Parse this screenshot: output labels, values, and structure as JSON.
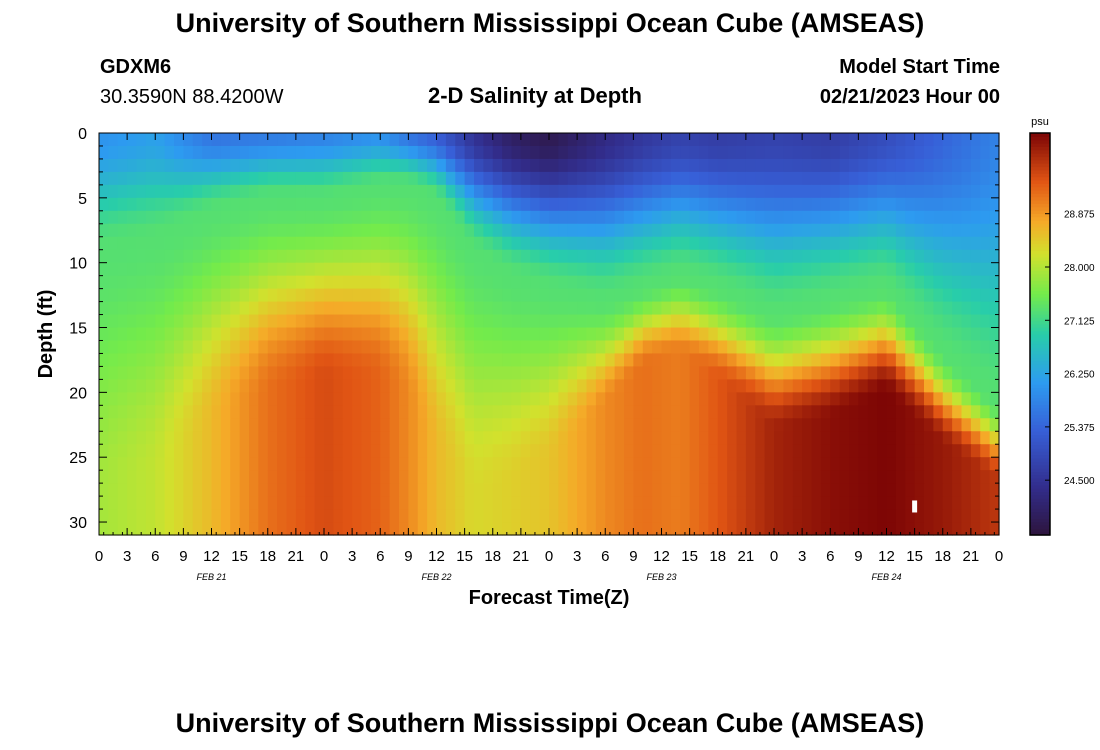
{
  "header": {
    "title": "University of Southern Mississippi Ocean Cube (AMSEAS)",
    "station_id": "GDXM6",
    "station_coords": "30.3590N  88.4200W",
    "plot_title": "2-D Salinity at Depth",
    "model_start_label": "Model Start Time",
    "model_start_value": "02/21/2023 Hour 00"
  },
  "footer": {
    "title": "University of Southern Mississippi Ocean Cube (AMSEAS)"
  },
  "chart_data": {
    "type": "heatmap",
    "title": "2-D Salinity at Depth",
    "xlabel": "Forecast Time(Z)",
    "ylabel": "Depth (ft)",
    "x_hours": [
      0,
      96
    ],
    "y_depth_ft": [
      0,
      31
    ],
    "y_ticks": [
      0,
      5,
      10,
      15,
      20,
      25,
      30
    ],
    "x_tick_labels": [
      "0",
      "3",
      "6",
      "9",
      "12",
      "15",
      "18",
      "21",
      "0",
      "3",
      "6",
      "9",
      "12",
      "15",
      "18",
      "21",
      "0",
      "3",
      "6",
      "9",
      "12",
      "15",
      "18",
      "21",
      "0",
      "3",
      "6",
      "9",
      "12",
      "15",
      "18",
      "21",
      "0"
    ],
    "day_labels": [
      "FEB 21",
      "FEB 22",
      "FEB 23",
      "FEB 24"
    ],
    "colorbar": {
      "unit": "psu",
      "min": 23.6,
      "max": 30.2,
      "ticks": [
        "28.875",
        "28.000",
        "27.125",
        "26.250",
        "25.375",
        "24.500"
      ],
      "tick_values": [
        28.875,
        28.0,
        27.125,
        26.25,
        25.375,
        24.5
      ]
    },
    "profile_columns": {
      "x_hours": [
        0,
        6,
        12,
        18,
        24,
        30,
        33,
        36,
        40,
        44,
        48,
        54,
        58,
        62,
        66,
        72,
        78,
        84,
        90,
        96
      ],
      "surface_salinity": [
        26.0,
        26.2,
        25.6,
        25.7,
        25.8,
        26.0,
        25.6,
        25.3,
        24.5,
        24.0,
        23.8,
        24.3,
        24.6,
        24.8,
        24.7,
        24.8,
        24.7,
        25.0,
        25.4,
        25.8
      ],
      "mid_depth_ft": [
        9,
        8,
        6,
        5,
        5,
        4,
        4,
        5,
        9,
        11,
        12,
        13,
        12,
        11,
        12,
        14,
        13,
        12,
        17,
        21
      ],
      "bottom_salinity": [
        27.9,
        28.1,
        28.6,
        29.2,
        29.5,
        29.3,
        29.0,
        28.6,
        28.3,
        28.4,
        28.5,
        29.0,
        29.2,
        29.1,
        29.4,
        29.9,
        30.1,
        30.2,
        30.0,
        29.7
      ],
      "deep_depth_ft": [
        28,
        26,
        22,
        20,
        19,
        19,
        20,
        24,
        28,
        27,
        25,
        21,
        18,
        17,
        19,
        23,
        22,
        20,
        24,
        27
      ]
    },
    "marker": {
      "x_hours": 87,
      "depth_ft": 28.8
    }
  }
}
